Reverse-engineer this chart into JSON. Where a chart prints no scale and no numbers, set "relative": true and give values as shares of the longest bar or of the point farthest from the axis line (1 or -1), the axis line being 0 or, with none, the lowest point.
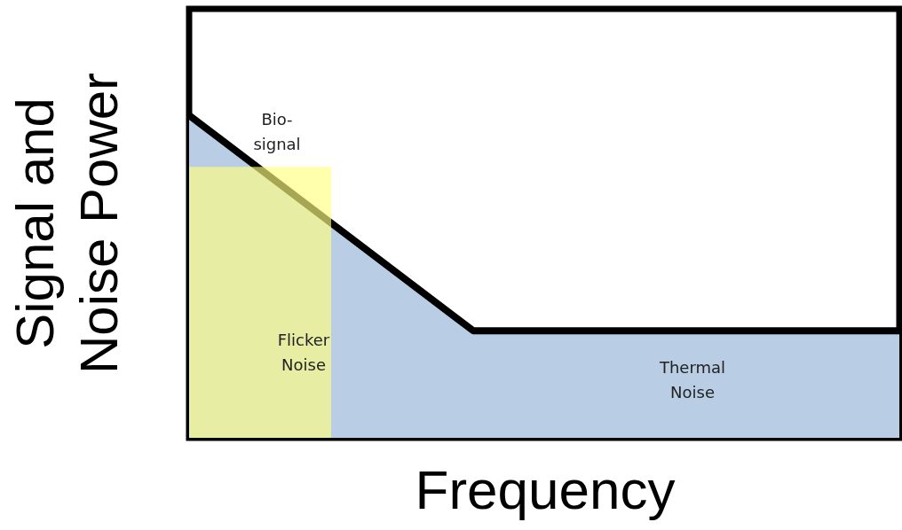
{
  "chart_data": {
    "type": "area",
    "relative": true,
    "xlabel": "Frequency",
    "ylabel": "Signal and\nNoise Power",
    "categories": [
      null,
      null,
      null,
      null,
      null,
      null
    ],
    "series": [
      {
        "type": "area",
        "color": "#b9cde5",
        "values": [
          1,
          0.666,
          0.332,
          0.332,
          0.332,
          0.332
        ]
      },
      {
        "type": "area",
        "color": "#ffff80",
        "values": [
          0.84,
          0.84,
          null,
          null,
          null,
          null
        ]
      }
    ],
    "annotations": [
      "Bio-\nsignal",
      "Flicker\nNoise",
      "Thermal\nNoise"
    ]
  }
}
